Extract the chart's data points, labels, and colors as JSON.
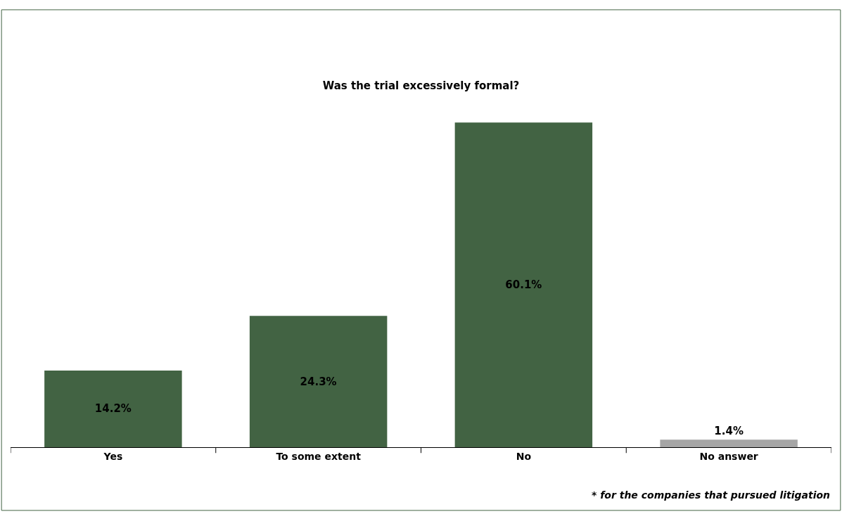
{
  "chart_data": {
    "type": "bar",
    "title": "Was the trial excessively formal?",
    "categories": [
      "Yes",
      "To some extent",
      "No",
      "No answer"
    ],
    "values": [
      14.2,
      24.3,
      60.1,
      1.4
    ],
    "colors": [
      "#426343",
      "#426343",
      "#426343",
      "#a6a6a6"
    ],
    "value_labels": [
      "14.2%",
      "24.3%",
      "60.1%",
      "1.4%"
    ],
    "annotations": [
      "* for the companies that pursued litigation"
    ]
  }
}
